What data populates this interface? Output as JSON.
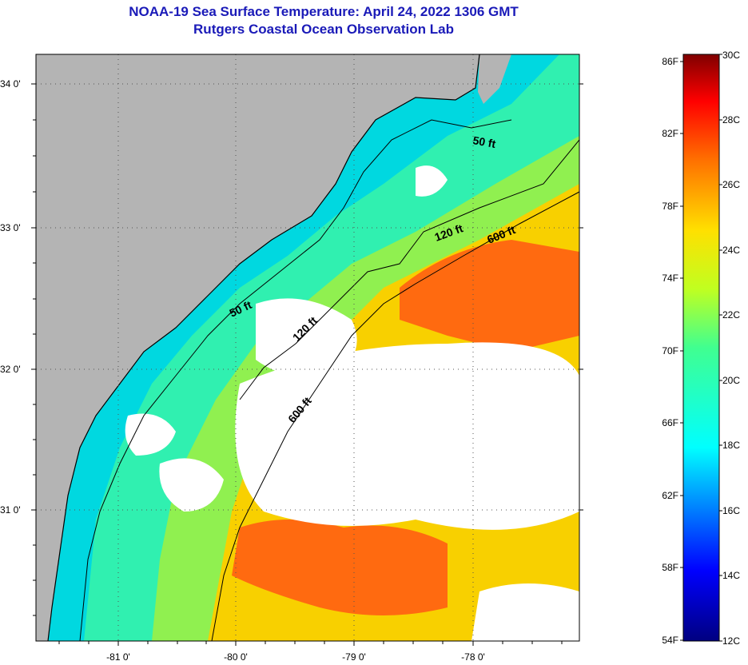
{
  "title": {
    "line1": "NOAA-19 Sea Surface Temperature:  April 24, 2022 1306 GMT",
    "line2": "Rutgers Coastal Ocean Observation Lab"
  },
  "map": {
    "lat_labels": [
      "34 0'",
      "33 0'",
      "32 0'",
      "31 0'"
    ],
    "lon_labels": [
      "-81 0'",
      "-80 0'",
      "-79 0'",
      "-78 0'"
    ],
    "contour_labels": {
      "c50_north": "50 ft",
      "c50_south": "50 ft",
      "c120_north": "120 ft",
      "c120_south": "120 ft",
      "c600_north": "600 ft",
      "c600_south": "600 ft"
    },
    "colors": {
      "land": "#b4b4b4",
      "cloud": "#ffffff",
      "cold": "#00d8e0",
      "cool": "#30f0b0",
      "mid": "#90f050",
      "warm": "#f8d000",
      "hot": "#ff6a10"
    }
  },
  "colorbar": {
    "fahrenheit": [
      "86F",
      "82F",
      "78F",
      "74F",
      "70F",
      "66F",
      "62F",
      "58F",
      "54F"
    ],
    "celsius": [
      "30C",
      "28C",
      "26C",
      "24C",
      "22C",
      "20C",
      "18C",
      "16C",
      "14C",
      "12C"
    ]
  }
}
